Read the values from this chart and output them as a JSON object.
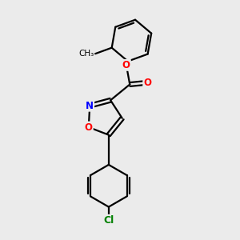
{
  "background_color": "#ebebeb",
  "bond_color": "#000000",
  "bond_width": 1.6,
  "atom_colors": {
    "O": "#ff0000",
    "N": "#0000ff",
    "Cl": "#008000",
    "C": "#000000"
  },
  "font_size": 8.5,
  "figsize": [
    3.0,
    3.0
  ],
  "dpi": 100
}
